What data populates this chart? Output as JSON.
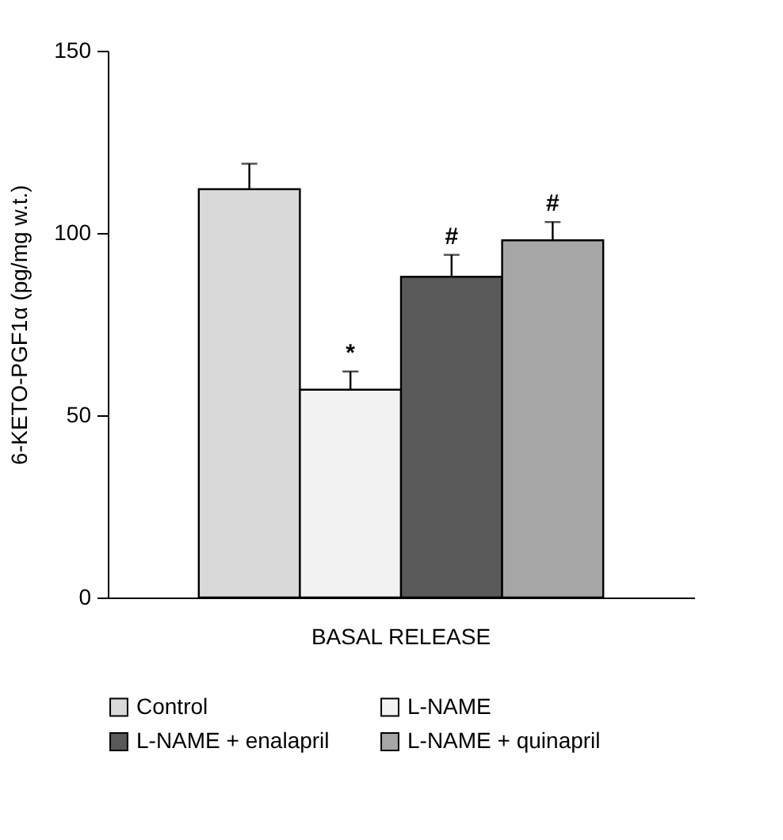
{
  "chart_data": {
    "type": "bar",
    "categories": [
      "BASAL RELEASE"
    ],
    "ylabel": "6-KETO-PGF1α (pg/mg w.t.)",
    "series": [
      {
        "name": "Control",
        "color": "#d9d9d9",
        "values": [
          112
        ],
        "errors": [
          7
        ]
      },
      {
        "name": "L-NAME",
        "color": "#f2f2f2",
        "values": [
          57
        ],
        "errors": [
          5
        ],
        "value_labels": [
          "*"
        ]
      },
      {
        "name": "L-NAME + enalapril",
        "color": "#595959",
        "values": [
          88
        ],
        "errors": [
          6
        ],
        "value_labels": [
          "#"
        ]
      },
      {
        "name": "L-NAME + quinapril",
        "color": "#a6a6a6",
        "values": [
          98
        ],
        "errors": [
          5
        ],
        "value_labels": [
          "#"
        ]
      }
    ],
    "ylim": [
      0,
      150
    ],
    "yticks": [
      0,
      50,
      100,
      150
    ],
    "grid": false,
    "legend": "bottom"
  }
}
